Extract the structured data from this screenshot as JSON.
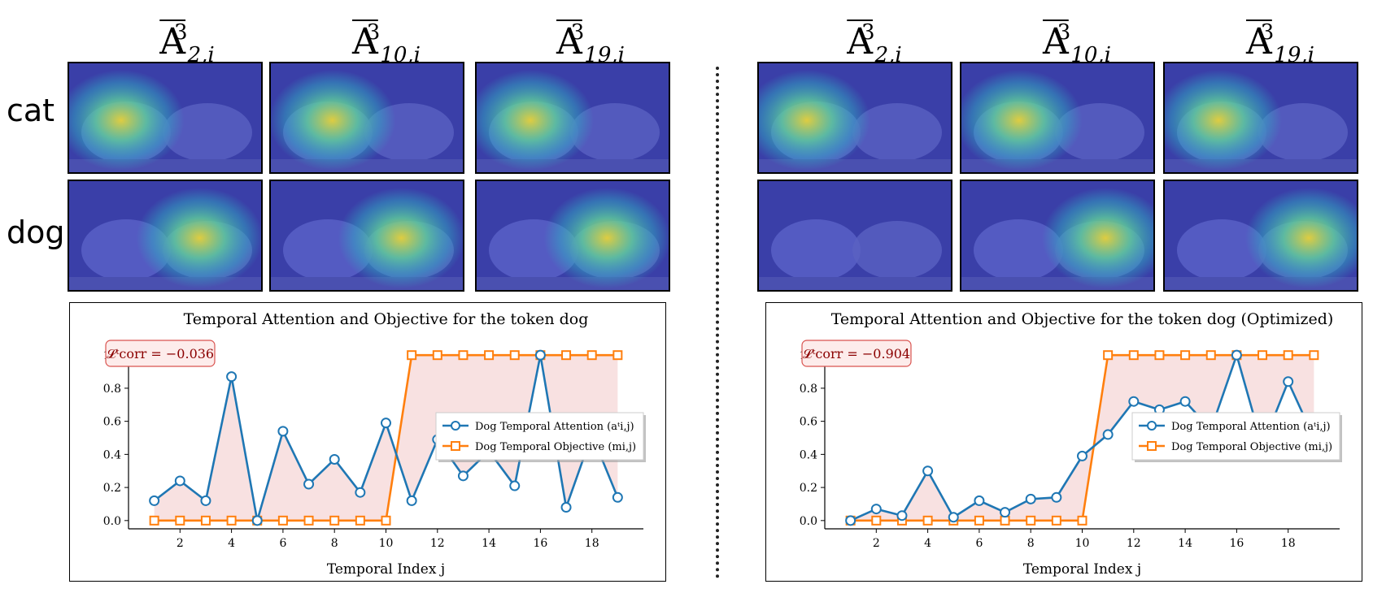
{
  "headers": {
    "left": [
      {
        "base": "A",
        "sup": "3",
        "sub": "2,i"
      },
      {
        "base": "A",
        "sup": "3",
        "sub": "10,i"
      },
      {
        "base": "A",
        "sup": "3",
        "sub": "19,i"
      }
    ],
    "right": [
      {
        "base": "A",
        "sup": "3",
        "sub": "2,i"
      },
      {
        "base": "A",
        "sup": "3",
        "sub": "10,i"
      },
      {
        "base": "A",
        "sup": "3",
        "sub": "19,i"
      }
    ]
  },
  "row_labels": {
    "cat": "cat",
    "dog": "dog"
  },
  "colors": {
    "attention": "#1f77b4",
    "objective": "#ff7f0e",
    "fill": "#f2c4c4",
    "corr_text": "#8b0000",
    "corr_box": "#d9534f",
    "heat_bg": "#3a3fa8"
  },
  "chart_data": [
    {
      "type": "line",
      "title": "Temporal Attention and Objective for the token dog",
      "xlabel": "Temporal Index j",
      "ylabel": "",
      "xticks": [
        2,
        4,
        6,
        8,
        10,
        12,
        14,
        16,
        18
      ],
      "yticks": [
        0.0,
        0.2,
        0.4,
        0.6,
        0.8,
        1.0
      ],
      "ylim": [
        0,
        1.0
      ],
      "xlim": [
        0,
        20
      ],
      "annotation": "𝓛ᵗcorr = −0.036",
      "legend_position": "center-right",
      "x": [
        1,
        2,
        3,
        4,
        5,
        6,
        7,
        8,
        9,
        10,
        11,
        12,
        13,
        14,
        15,
        16,
        17,
        18,
        19
      ],
      "series": [
        {
          "name": "Dog Temporal Attention (aᵗi,j)",
          "marker": "circle",
          "values": [
            0.12,
            0.24,
            0.12,
            0.87,
            0.0,
            0.54,
            0.22,
            0.37,
            0.17,
            0.59,
            0.12,
            0.49,
            0.27,
            0.42,
            0.21,
            1.0,
            0.08,
            0.52,
            0.14
          ]
        },
        {
          "name": "Dog Temporal Objective (mi,j)",
          "marker": "square",
          "values": [
            0,
            0,
            0,
            0,
            0,
            0,
            0,
            0,
            0,
            0,
            1,
            1,
            1,
            1,
            1,
            1,
            1,
            1,
            1
          ]
        }
      ]
    },
    {
      "type": "line",
      "title": "Temporal Attention and Objective for the token dog (Optimized)",
      "xlabel": "Temporal Index j",
      "ylabel": "",
      "xticks": [
        2,
        4,
        6,
        8,
        10,
        12,
        14,
        16,
        18
      ],
      "yticks": [
        0.0,
        0.2,
        0.4,
        0.6,
        0.8,
        1.0
      ],
      "ylim": [
        0,
        1.0
      ],
      "xlim": [
        0,
        20
      ],
      "annotation": "𝓛ᵗcorr = −0.904",
      "legend_position": "center-right",
      "x": [
        1,
        2,
        3,
        4,
        5,
        6,
        7,
        8,
        9,
        10,
        11,
        12,
        13,
        14,
        15,
        16,
        17,
        18,
        19
      ],
      "series": [
        {
          "name": "Dog Temporal Attention (aᵗi,j)",
          "marker": "circle",
          "values": [
            0.0,
            0.07,
            0.03,
            0.3,
            0.02,
            0.12,
            0.05,
            0.13,
            0.14,
            0.39,
            0.52,
            0.72,
            0.67,
            0.72,
            0.55,
            1.0,
            0.45,
            0.84,
            0.5
          ]
        },
        {
          "name": "Dog Temporal Objective (mi,j)",
          "marker": "square",
          "values": [
            0,
            0,
            0,
            0,
            0,
            0,
            0,
            0,
            0,
            0,
            1,
            1,
            1,
            1,
            1,
            1,
            1,
            1,
            1
          ]
        }
      ]
    }
  ]
}
